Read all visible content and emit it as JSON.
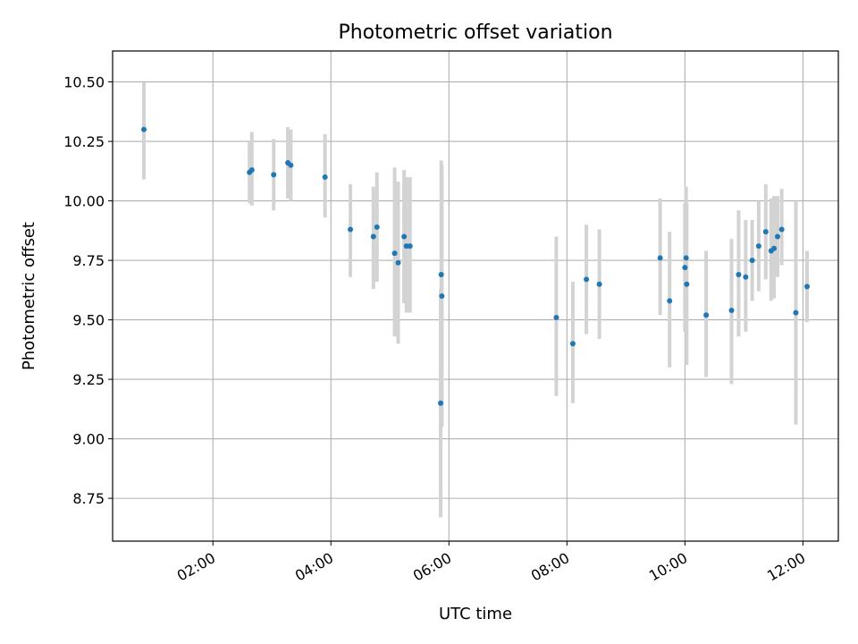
{
  "chart_data": {
    "type": "scatter",
    "title": "Photometric offset variation",
    "xlabel": "UTC time",
    "ylabel": "Photometric offset",
    "x_unit": "hours UTC",
    "xlim": [
      0.3,
      12.6
    ],
    "ylim": [
      8.57,
      10.63
    ],
    "grid": true,
    "legend": "none",
    "x_ticks": [
      {
        "value": 2,
        "label": "02:00"
      },
      {
        "value": 4,
        "label": "04:00"
      },
      {
        "value": 6,
        "label": "06:00"
      },
      {
        "value": 8,
        "label": "08:00"
      },
      {
        "value": 10,
        "label": "10:00"
      },
      {
        "value": 12,
        "label": "12:00"
      }
    ],
    "y_ticks": [
      {
        "value": 8.75,
        "label": "8.75"
      },
      {
        "value": 9.0,
        "label": "9.00"
      },
      {
        "value": 9.25,
        "label": "9.25"
      },
      {
        "value": 9.5,
        "label": "9.50"
      },
      {
        "value": 9.75,
        "label": "9.75"
      },
      {
        "value": 10.0,
        "label": "10.00"
      },
      {
        "value": 10.25,
        "label": "10.25"
      },
      {
        "value": 10.5,
        "label": "10.50"
      }
    ],
    "marker_color": "#1f77b4",
    "errorbar_color": "#d3d3d3",
    "points": [
      {
        "x": 0.83,
        "y": 10.3,
        "lo": 10.09,
        "hi": 10.5
      },
      {
        "x": 2.62,
        "y": 10.12,
        "lo": 9.99,
        "hi": 10.25
      },
      {
        "x": 2.66,
        "y": 10.13,
        "lo": 9.98,
        "hi": 10.29
      },
      {
        "x": 3.03,
        "y": 10.11,
        "lo": 9.96,
        "hi": 10.26
      },
      {
        "x": 3.27,
        "y": 10.16,
        "lo": 10.01,
        "hi": 10.31
      },
      {
        "x": 3.32,
        "y": 10.15,
        "lo": 10.0,
        "hi": 10.3
      },
      {
        "x": 3.9,
        "y": 10.1,
        "lo": 9.93,
        "hi": 10.28
      },
      {
        "x": 4.33,
        "y": 9.88,
        "lo": 9.68,
        "hi": 10.07
      },
      {
        "x": 4.72,
        "y": 9.85,
        "lo": 9.63,
        "hi": 10.06
      },
      {
        "x": 4.78,
        "y": 9.89,
        "lo": 9.66,
        "hi": 10.12
      },
      {
        "x": 5.08,
        "y": 9.78,
        "lo": 9.43,
        "hi": 10.14
      },
      {
        "x": 5.14,
        "y": 9.74,
        "lo": 9.4,
        "hi": 10.08
      },
      {
        "x": 5.24,
        "y": 9.85,
        "lo": 9.57,
        "hi": 10.13
      },
      {
        "x": 5.28,
        "y": 9.81,
        "lo": 9.53,
        "hi": 10.1
      },
      {
        "x": 5.34,
        "y": 9.81,
        "lo": 9.53,
        "hi": 10.1
      },
      {
        "x": 5.87,
        "y": 9.69,
        "lo": 9.2,
        "hi": 10.17
      },
      {
        "x": 5.88,
        "y": 9.6,
        "lo": 9.05,
        "hi": 10.15
      },
      {
        "x": 5.86,
        "y": 9.15,
        "lo": 8.67,
        "hi": 9.63
      },
      {
        "x": 7.82,
        "y": 9.51,
        "lo": 9.18,
        "hi": 9.85
      },
      {
        "x": 8.1,
        "y": 9.4,
        "lo": 9.15,
        "hi": 9.66
      },
      {
        "x": 8.33,
        "y": 9.67,
        "lo": 9.44,
        "hi": 9.9
      },
      {
        "x": 8.55,
        "y": 9.65,
        "lo": 9.42,
        "hi": 9.88
      },
      {
        "x": 9.58,
        "y": 9.76,
        "lo": 9.52,
        "hi": 10.01
      },
      {
        "x": 9.74,
        "y": 9.58,
        "lo": 9.3,
        "hi": 9.87
      },
      {
        "x": 10.0,
        "y": 9.72,
        "lo": 9.45,
        "hi": 9.99
      },
      {
        "x": 10.02,
        "y": 9.76,
        "lo": 9.45,
        "hi": 10.06
      },
      {
        "x": 10.03,
        "y": 9.65,
        "lo": 9.31,
        "hi": 9.99
      },
      {
        "x": 10.36,
        "y": 9.52,
        "lo": 9.26,
        "hi": 9.79
      },
      {
        "x": 10.79,
        "y": 9.54,
        "lo": 9.23,
        "hi": 9.84
      },
      {
        "x": 10.91,
        "y": 9.69,
        "lo": 9.43,
        "hi": 9.96
      },
      {
        "x": 11.03,
        "y": 9.68,
        "lo": 9.45,
        "hi": 9.92
      },
      {
        "x": 11.14,
        "y": 9.75,
        "lo": 9.58,
        "hi": 9.92
      },
      {
        "x": 11.25,
        "y": 9.81,
        "lo": 9.62,
        "hi": 10.0
      },
      {
        "x": 11.37,
        "y": 9.87,
        "lo": 9.67,
        "hi": 10.07
      },
      {
        "x": 11.46,
        "y": 9.79,
        "lo": 9.58,
        "hi": 10.01
      },
      {
        "x": 11.51,
        "y": 9.8,
        "lo": 9.59,
        "hi": 10.02
      },
      {
        "x": 11.57,
        "y": 9.85,
        "lo": 9.68,
        "hi": 10.02
      },
      {
        "x": 11.64,
        "y": 9.88,
        "lo": 9.73,
        "hi": 10.05
      },
      {
        "x": 11.88,
        "y": 9.53,
        "lo": 9.06,
        "hi": 10.0
      },
      {
        "x": 12.07,
        "y": 9.64,
        "lo": 9.49,
        "hi": 9.79
      }
    ]
  }
}
